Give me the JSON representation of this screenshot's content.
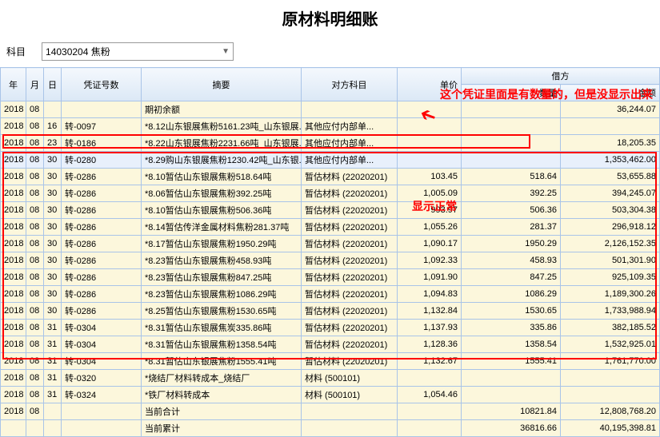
{
  "title": "原材料明细账",
  "filter": {
    "label": "科目",
    "value": "14030204 焦粉"
  },
  "headers": {
    "year": "年",
    "month": "月",
    "day": "日",
    "voucher": "凭证号数",
    "summary": "摘要",
    "account": "对方科目",
    "price": "单价",
    "debit": "借方",
    "qty": "数量",
    "amount": "金额"
  },
  "annotations": {
    "a1": "这个凭证里面是有数量的，但是没显示出来",
    "a2": "显示正常"
  },
  "rows": [
    {
      "y": "2018",
      "m": "08",
      "d": "",
      "v": "",
      "s": "期初余额",
      "a": "",
      "p": "",
      "q": "",
      "amt": "36,244.07",
      "hl": false
    },
    {
      "y": "2018",
      "m": "08",
      "d": "16",
      "v": "转-0097",
      "s": "*8.12山东银展焦粉5161.23吨_山东银展...",
      "a": "其他应付内部单...",
      "p": "",
      "q": "",
      "amt": "",
      "hl": false
    },
    {
      "y": "2018",
      "m": "08",
      "d": "23",
      "v": "转-0186",
      "s": "*8.22山东银展焦粉2231.66吨_山东银展...",
      "a": "其他应付内部单...",
      "p": "",
      "q": "",
      "amt": "18,205.35",
      "hl": false
    },
    {
      "y": "2018",
      "m": "08",
      "d": "30",
      "v": "转-0280",
      "s": "*8.29购山东银展焦粉1230.42吨_山东银...",
      "a": "其他应付内部单...",
      "p": "",
      "q": "",
      "amt": "1,353,462.00",
      "hl": true
    },
    {
      "y": "2018",
      "m": "08",
      "d": "30",
      "v": "转-0286",
      "s": "*8.10暂估山东银展焦粉518.64吨",
      "a": "暂估材料 (22020201)",
      "p": "103.45",
      "q": "518.64",
      "amt": "53,655.88",
      "hl": false
    },
    {
      "y": "2018",
      "m": "08",
      "d": "30",
      "v": "转-0286",
      "s": "*8.06暂估山东银展焦粉392.25吨",
      "a": "暂估材料 (22020201)",
      "p": "1,005.09",
      "q": "392.25",
      "amt": "394,245.07",
      "hl": false
    },
    {
      "y": "2018",
      "m": "08",
      "d": "30",
      "v": "转-0286",
      "s": "*8.10暂估山东银展焦粉506.36吨",
      "a": "暂估材料 (22020201)",
      "p": "993.97",
      "q": "506.36",
      "amt": "503,304.38",
      "hl": false
    },
    {
      "y": "2018",
      "m": "08",
      "d": "30",
      "v": "转-0286",
      "s": "*8.14暂估传洋金属材料焦粉281.37吨",
      "a": "暂估材料 (22020201)",
      "p": "1,055.26",
      "q": "281.37",
      "amt": "296,918.12",
      "hl": false
    },
    {
      "y": "2018",
      "m": "08",
      "d": "30",
      "v": "转-0286",
      "s": "*8.17暂估山东银展焦粉1950.29吨",
      "a": "暂估材料 (22020201)",
      "p": "1,090.17",
      "q": "1950.29",
      "amt": "2,126,152.35",
      "hl": false
    },
    {
      "y": "2018",
      "m": "08",
      "d": "30",
      "v": "转-0286",
      "s": "*8.23暂估山东银展焦粉458.93吨",
      "a": "暂估材料 (22020201)",
      "p": "1,092.33",
      "q": "458.93",
      "amt": "501,301.90",
      "hl": false
    },
    {
      "y": "2018",
      "m": "08",
      "d": "30",
      "v": "转-0286",
      "s": "*8.23暂估山东银展焦粉847.25吨",
      "a": "暂估材料 (22020201)",
      "p": "1,091.90",
      "q": "847.25",
      "amt": "925,109.35",
      "hl": false
    },
    {
      "y": "2018",
      "m": "08",
      "d": "30",
      "v": "转-0286",
      "s": "*8.23暂估山东银展焦粉1086.29吨",
      "a": "暂估材料 (22020201)",
      "p": "1,094.83",
      "q": "1086.29",
      "amt": "1,189,300.26",
      "hl": false
    },
    {
      "y": "2018",
      "m": "08",
      "d": "30",
      "v": "转-0286",
      "s": "*8.25暂估山东银展焦粉1530.65吨",
      "a": "暂估材料 (22020201)",
      "p": "1,132.84",
      "q": "1530.65",
      "amt": "1,733,988.94",
      "hl": false
    },
    {
      "y": "2018",
      "m": "08",
      "d": "31",
      "v": "转-0304",
      "s": "*8.31暂估山东银展焦炭335.86吨",
      "a": "暂估材料 (22020201)",
      "p": "1,137.93",
      "q": "335.86",
      "amt": "382,185.52",
      "hl": false
    },
    {
      "y": "2018",
      "m": "08",
      "d": "31",
      "v": "转-0304",
      "s": "*8.31暂估山东银展焦粉1358.54吨",
      "a": "暂估材料 (22020201)",
      "p": "1,128.36",
      "q": "1358.54",
      "amt": "1,532,925.01",
      "hl": false
    },
    {
      "y": "2018",
      "m": "08",
      "d": "31",
      "v": "转-0304",
      "s": "*8.31暂估山东银展焦粉1555.41吨",
      "a": "暂估材料 (22020201)",
      "p": "1,132.67",
      "q": "1555.41",
      "amt": "1,761,770.00",
      "hl": false
    },
    {
      "y": "2018",
      "m": "08",
      "d": "31",
      "v": "转-0320",
      "s": "*烧结厂材料转成本_烧结厂",
      "a": "材料 (500101)",
      "p": "",
      "q": "",
      "amt": "",
      "hl": false
    },
    {
      "y": "2018",
      "m": "08",
      "d": "31",
      "v": "转-0324",
      "s": "*铁厂材料转成本",
      "a": "材料 (500101)",
      "p": "1,054.46",
      "q": "",
      "amt": "",
      "hl": false
    },
    {
      "y": "2018",
      "m": "08",
      "d": "",
      "v": "",
      "s": "当前合计",
      "a": "",
      "p": "",
      "q": "10821.84",
      "amt": "12,808,768.20",
      "hl": false
    },
    {
      "y": "",
      "m": "",
      "d": "",
      "v": "",
      "s": "当前累计",
      "a": "",
      "p": "",
      "q": "36816.66",
      "amt": "40,195,398.81",
      "hl": false
    }
  ]
}
